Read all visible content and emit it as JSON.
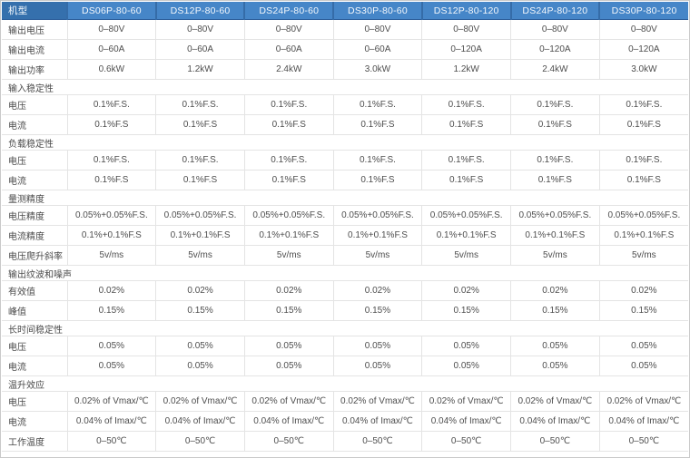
{
  "colors": {
    "header_bg": "#4686c8",
    "header_first_bg": "#3570ad",
    "header_divider": "#356ca8",
    "header_text": "#f4f8fc",
    "body_border": "#e4e4e4",
    "body_text": "#4e4e4e"
  },
  "table": {
    "header": {
      "label": "机型",
      "models": [
        "DS06P-80-60",
        "DS12P-80-60",
        "DS24P-80-60",
        "DS30P-80-60",
        "DS12P-80-120",
        "DS24P-80-120",
        "DS30P-80-120"
      ]
    },
    "rows": [
      {
        "type": "data",
        "label": "输出电压",
        "values": [
          "0–80V",
          "0–80V",
          "0–80V",
          "0–80V",
          "0–80V",
          "0–80V",
          "0–80V"
        ]
      },
      {
        "type": "data",
        "label": "输出电流",
        "values": [
          "0–60A",
          "0–60A",
          "0–60A",
          "0–60A",
          "0–120A",
          "0–120A",
          "0–120A"
        ]
      },
      {
        "type": "data",
        "label": "输出功率",
        "values": [
          "0.6kW",
          "1.2kW",
          "2.4kW",
          "3.0kW",
          "1.2kW",
          "2.4kW",
          "3.0kW"
        ]
      },
      {
        "type": "section",
        "label": "输入稳定性"
      },
      {
        "type": "data",
        "label": "电压",
        "values": [
          "0.1%F.S.",
          "0.1%F.S.",
          "0.1%F.S.",
          "0.1%F.S.",
          "0.1%F.S.",
          "0.1%F.S.",
          "0.1%F.S."
        ]
      },
      {
        "type": "data",
        "label": "电流",
        "values": [
          "0.1%F.S",
          "0.1%F.S",
          "0.1%F.S",
          "0.1%F.S",
          "0.1%F.S",
          "0.1%F.S",
          "0.1%F.S"
        ]
      },
      {
        "type": "section",
        "label": "负载稳定性"
      },
      {
        "type": "data",
        "label": "电压",
        "values": [
          "0.1%F.S.",
          "0.1%F.S.",
          "0.1%F.S.",
          "0.1%F.S.",
          "0.1%F.S.",
          "0.1%F.S.",
          "0.1%F.S."
        ]
      },
      {
        "type": "data",
        "label": "电流",
        "values": [
          "0.1%F.S",
          "0.1%F.S",
          "0.1%F.S",
          "0.1%F.S",
          "0.1%F.S",
          "0.1%F.S",
          "0.1%F.S"
        ]
      },
      {
        "type": "section",
        "label": "量测精度"
      },
      {
        "type": "data",
        "label": "电压精度",
        "values": [
          "0.05%+0.05%F.S.",
          "0.05%+0.05%F.S.",
          "0.05%+0.05%F.S.",
          "0.05%+0.05%F.S.",
          "0.05%+0.05%F.S.",
          "0.05%+0.05%F.S.",
          "0.05%+0.05%F.S."
        ]
      },
      {
        "type": "data",
        "label": "电流精度",
        "values": [
          "0.1%+0.1%F.S",
          "0.1%+0.1%F.S",
          "0.1%+0.1%F.S",
          "0.1%+0.1%F.S",
          "0.1%+0.1%F.S",
          "0.1%+0.1%F.S",
          "0.1%+0.1%F.S"
        ]
      },
      {
        "type": "data",
        "label": "电压爬升斜率",
        "values": [
          "5v/ms",
          "5v/ms",
          "5v/ms",
          "5v/ms",
          "5v/ms",
          "5v/ms",
          "5v/ms"
        ]
      },
      {
        "type": "section",
        "label": "输出纹波和噪声"
      },
      {
        "type": "data",
        "label": "有效值",
        "values": [
          "0.02%",
          "0.02%",
          "0.02%",
          "0.02%",
          "0.02%",
          "0.02%",
          "0.02%"
        ]
      },
      {
        "type": "data",
        "label": "峰值",
        "values": [
          "0.15%",
          "0.15%",
          "0.15%",
          "0.15%",
          "0.15%",
          "0.15%",
          "0.15%"
        ]
      },
      {
        "type": "section",
        "label": "长时间稳定性"
      },
      {
        "type": "data",
        "label": "电压",
        "values": [
          "0.05%",
          "0.05%",
          "0.05%",
          "0.05%",
          "0.05%",
          "0.05%",
          "0.05%"
        ]
      },
      {
        "type": "data",
        "label": "电流",
        "values": [
          "0.05%",
          "0.05%",
          "0.05%",
          "0.05%",
          "0.05%",
          "0.05%",
          "0.05%"
        ]
      },
      {
        "type": "section",
        "label": "温升效应"
      },
      {
        "type": "data",
        "label": "电压",
        "values": [
          "0.02% of Vmax/℃",
          "0.02% of Vmax/℃",
          "0.02% of Vmax/℃",
          "0.02% of Vmax/℃",
          "0.02% of Vmax/℃",
          "0.02% of Vmax/℃",
          "0.02% of Vmax/℃"
        ]
      },
      {
        "type": "data",
        "label": "电流",
        "values": [
          "0.04% of Imax/℃",
          "0.04% of Imax/℃",
          "0.04% of Imax/℃",
          "0.04% of Imax/℃",
          "0.04% of Imax/℃",
          "0.04% of Imax/℃",
          "0.04% of Imax/℃"
        ]
      },
      {
        "type": "data",
        "label": "工作温度",
        "values": [
          "0–50℃",
          "0–50℃",
          "0–50℃",
          "0–50℃",
          "0–50℃",
          "0–50℃",
          "0–50℃"
        ]
      }
    ]
  }
}
